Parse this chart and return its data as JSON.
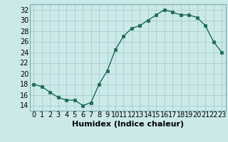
{
  "x": [
    0,
    1,
    2,
    3,
    4,
    5,
    6,
    7,
    8,
    9,
    10,
    11,
    12,
    13,
    14,
    15,
    16,
    17,
    18,
    19,
    20,
    21,
    22,
    23
  ],
  "y": [
    18,
    17.5,
    16.5,
    15.5,
    15,
    15,
    14,
    14.5,
    18,
    20.5,
    24.5,
    27,
    28.5,
    29,
    30,
    31,
    32,
    31.5,
    31,
    31,
    30.5,
    29,
    26,
    24
  ],
  "line_color": "#1a6b5a",
  "marker_color": "#1a6b5a",
  "bg_color": "#cce9e9",
  "grid_color": "#aad0d0",
  "xlabel": "Humidex (Indice chaleur)",
  "ylim": [
    13,
    33
  ],
  "xlim": [
    -0.5,
    23.5
  ],
  "yticks": [
    14,
    16,
    18,
    20,
    22,
    24,
    26,
    28,
    30,
    32
  ],
  "xticks": [
    0,
    1,
    2,
    3,
    4,
    5,
    6,
    7,
    8,
    9,
    10,
    11,
    12,
    13,
    14,
    15,
    16,
    17,
    18,
    19,
    20,
    21,
    22,
    23
  ],
  "xtick_labels": [
    "0",
    "1",
    "2",
    "3",
    "4",
    "5",
    "6",
    "7",
    "8",
    "9",
    "10",
    "11",
    "12",
    "13",
    "14",
    "15",
    "16",
    "17",
    "18",
    "19",
    "20",
    "21",
    "22",
    "23"
  ],
  "xlabel_fontsize": 8,
  "tick_fontsize": 7
}
